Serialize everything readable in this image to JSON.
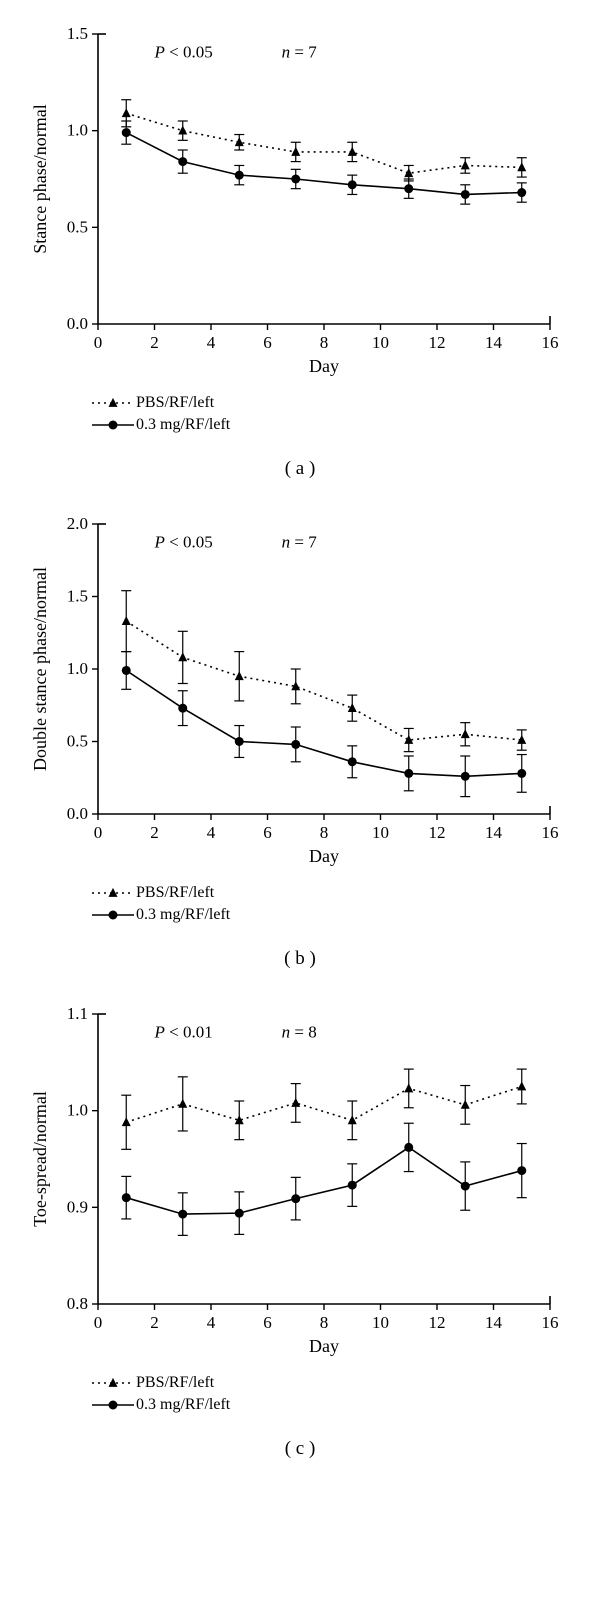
{
  "global": {
    "xlabel": "Day",
    "x_days": [
      1,
      3,
      5,
      7,
      9,
      11,
      13,
      15
    ],
    "series_labels": {
      "pbs": "PBS/RF/left",
      "dose": "0.3 mg/RF/left"
    },
    "colors": {
      "axis": "#000000",
      "line": "#000000",
      "background": "#ffffff"
    },
    "marker_size": 4.5,
    "line_width": 1.6,
    "error_cap": 5,
    "xlim": [
      0,
      16
    ],
    "xtick_step": 2
  },
  "chart_a": {
    "label": "( a )",
    "ylabel": "Stance phase/normal",
    "p_text": "P < 0.05",
    "n_text": "n = 7",
    "ylim": [
      0.0,
      1.5
    ],
    "ytick_step": 0.5,
    "pbs": {
      "y": [
        1.09,
        1.0,
        0.94,
        0.89,
        0.89,
        0.78,
        0.82,
        0.81
      ],
      "err": [
        0.07,
        0.05,
        0.04,
        0.05,
        0.05,
        0.04,
        0.04,
        0.05
      ]
    },
    "dose": {
      "y": [
        0.99,
        0.84,
        0.77,
        0.75,
        0.72,
        0.7,
        0.67,
        0.68
      ],
      "err": [
        0.06,
        0.06,
        0.05,
        0.05,
        0.05,
        0.05,
        0.05,
        0.05
      ]
    }
  },
  "chart_b": {
    "label": "( b )",
    "ylabel": "Double stance phase/normal",
    "p_text": "P < 0.05",
    "n_text": "n = 7",
    "ylim": [
      0.0,
      2.0
    ],
    "ytick_step": 0.5,
    "pbs": {
      "y": [
        1.33,
        1.08,
        0.95,
        0.88,
        0.73,
        0.51,
        0.55,
        0.51
      ],
      "err": [
        0.21,
        0.18,
        0.17,
        0.12,
        0.09,
        0.08,
        0.08,
        0.07
      ]
    },
    "dose": {
      "y": [
        0.99,
        0.73,
        0.5,
        0.48,
        0.36,
        0.28,
        0.26,
        0.28
      ],
      "err": [
        0.13,
        0.12,
        0.11,
        0.12,
        0.11,
        0.12,
        0.14,
        0.13
      ]
    }
  },
  "chart_c": {
    "label": "( c )",
    "ylabel": "Toe-spread/normal",
    "p_text": "P < 0.01",
    "n_text": "n = 8",
    "ylim": [
      0.8,
      1.1
    ],
    "ytick_step": 0.1,
    "pbs": {
      "y": [
        0.988,
        1.007,
        0.99,
        1.008,
        0.99,
        1.023,
        1.006,
        1.025
      ],
      "err": [
        0.028,
        0.028,
        0.02,
        0.02,
        0.02,
        0.02,
        0.02,
        0.018
      ]
    },
    "dose": {
      "y": [
        0.91,
        0.893,
        0.894,
        0.909,
        0.923,
        0.962,
        0.922,
        0.938
      ],
      "err": [
        0.022,
        0.022,
        0.022,
        0.022,
        0.022,
        0.025,
        0.025,
        0.028
      ]
    }
  }
}
